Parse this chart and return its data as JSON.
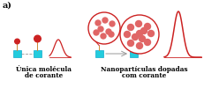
{
  "title_label": "a)",
  "left_label_line1": "Única molécula",
  "left_label_line2": "de corante",
  "right_label_line1": "Nanopartículas dopadas",
  "right_label_line2": "com corante",
  "bg_color": "#ffffff",
  "red_color": "#cc2222",
  "red_light": "#e06666",
  "cyan_color": "#22ccdd",
  "cyan_dark": "#11aacc",
  "stem_color": "#cc8833",
  "gray": "#999999",
  "text_color": "#000000",
  "figsize": [
    2.32,
    1.17
  ],
  "dpi": 100
}
